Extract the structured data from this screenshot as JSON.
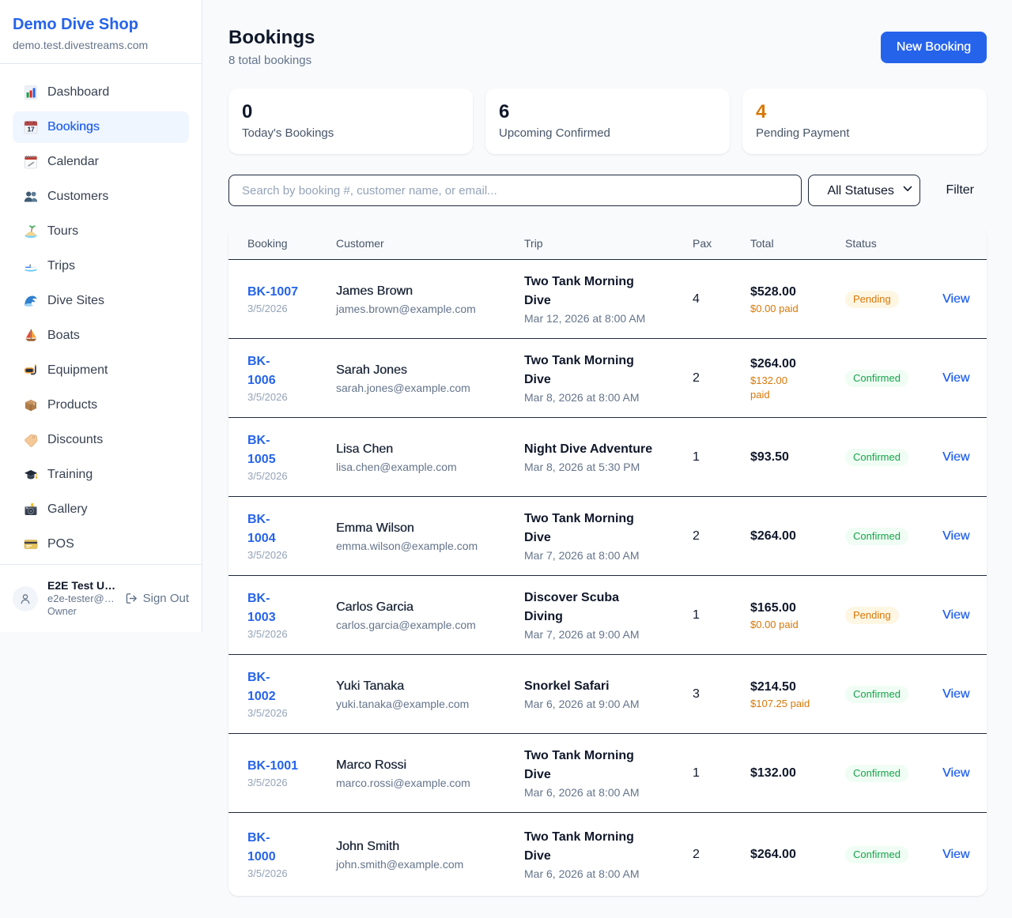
{
  "sidebar": {
    "brand": "Demo Dive Shop",
    "domain": "demo.test.divestreams.com",
    "items": [
      {
        "icon": "bar-chart-icon",
        "label": "Dashboard",
        "active": false
      },
      {
        "icon": "calendar-date-icon",
        "label": "Bookings",
        "active": true
      },
      {
        "icon": "spiral-calendar-icon",
        "label": "Calendar",
        "active": false
      },
      {
        "icon": "people-icon",
        "label": "Customers",
        "active": false
      },
      {
        "icon": "island-icon",
        "label": "Tours",
        "active": false
      },
      {
        "icon": "speedboat-icon",
        "label": "Trips",
        "active": false
      },
      {
        "icon": "wave-icon",
        "label": "Dive Sites",
        "active": false
      },
      {
        "icon": "sailboat-icon",
        "label": "Boats",
        "active": false
      },
      {
        "icon": "dive-mask-icon",
        "label": "Equipment",
        "active": false
      },
      {
        "icon": "package-icon",
        "label": "Products",
        "active": false
      },
      {
        "icon": "tag-icon",
        "label": "Discounts",
        "active": false
      },
      {
        "icon": "grad-cap-icon",
        "label": "Training",
        "active": false
      },
      {
        "icon": "camera-icon",
        "label": "Gallery",
        "active": false
      },
      {
        "icon": "credit-card-icon",
        "label": "POS",
        "active": false
      }
    ],
    "user": {
      "name": "E2E Test U…",
      "email": "e2e-tester@…",
      "role": "Owner",
      "signout_label": "Sign Out"
    }
  },
  "header": {
    "title": "Bookings",
    "subtitle": "8 total bookings",
    "new_booking_label": "New Booking"
  },
  "stats": [
    {
      "value": "0",
      "label": "Today's Bookings",
      "accent": false
    },
    {
      "value": "6",
      "label": "Upcoming Confirmed",
      "accent": false
    },
    {
      "value": "4",
      "label": "Pending Payment",
      "accent": true
    }
  ],
  "controls": {
    "search_placeholder": "Search by booking #, customer name, or email...",
    "status_selected": "All Statuses",
    "filter_label": "Filter"
  },
  "table": {
    "columns": [
      "Booking",
      "Customer",
      "Trip",
      "Pax",
      "Total",
      "Status"
    ],
    "rows": [
      {
        "id_lines": [
          "BK-1007"
        ],
        "date": "3/5/2026",
        "customer": "James Brown",
        "email": "james.brown@example.com",
        "trip": "Two Tank Morning Dive",
        "trip_date": "Mar 12, 2026 at 8:00 AM",
        "pax": "4",
        "total": "$528.00",
        "paid_lines": [
          "$0.00 paid"
        ],
        "status": "Pending",
        "action": "View"
      },
      {
        "id_lines": [
          "BK-",
          "1006"
        ],
        "date": "3/5/2026",
        "customer": "Sarah Jones",
        "email": "sarah.jones@example.com",
        "trip": "Two Tank Morning Dive",
        "trip_date": "Mar 8, 2026 at 8:00 AM",
        "pax": "2",
        "total": "$264.00",
        "paid_lines": [
          "$132.00",
          "paid"
        ],
        "status": "Confirmed",
        "action": "View"
      },
      {
        "id_lines": [
          "BK-",
          "1005"
        ],
        "date": "3/5/2026",
        "customer": "Lisa Chen",
        "email": "lisa.chen@example.com",
        "trip": "Night Dive Adventure",
        "trip_date": "Mar 8, 2026 at 5:30 PM",
        "pax": "1",
        "total": "$93.50",
        "paid_lines": [],
        "status": "Confirmed",
        "action": "View"
      },
      {
        "id_lines": [
          "BK-",
          "1004"
        ],
        "date": "3/5/2026",
        "customer": "Emma Wilson",
        "email": "emma.wilson@example.com",
        "trip": "Two Tank Morning Dive",
        "trip_date": "Mar 7, 2026 at 8:00 AM",
        "pax": "2",
        "total": "$264.00",
        "paid_lines": [],
        "status": "Confirmed",
        "action": "View"
      },
      {
        "id_lines": [
          "BK-",
          "1003"
        ],
        "date": "3/5/2026",
        "customer": "Carlos Garcia",
        "email": "carlos.garcia@example.com",
        "trip": "Discover Scuba Diving",
        "trip_date": "Mar 7, 2026 at 9:00 AM",
        "pax": "1",
        "total": "$165.00",
        "paid_lines": [
          "$0.00 paid"
        ],
        "status": "Pending",
        "action": "View"
      },
      {
        "id_lines": [
          "BK-",
          "1002"
        ],
        "date": "3/5/2026",
        "customer": "Yuki Tanaka",
        "email": "yuki.tanaka@example.com",
        "trip": "Snorkel Safari",
        "trip_date": "Mar 6, 2026 at 9:00 AM",
        "pax": "3",
        "total": "$214.50",
        "paid_lines": [
          "$107.25 paid"
        ],
        "status": "Confirmed",
        "action": "View"
      },
      {
        "id_lines": [
          "BK-1001"
        ],
        "date": "3/5/2026",
        "customer": "Marco Rossi",
        "email": "marco.rossi@example.com",
        "trip": "Two Tank Morning Dive",
        "trip_date": "Mar 6, 2026 at 8:00 AM",
        "pax": "1",
        "total": "$132.00",
        "paid_lines": [],
        "status": "Confirmed",
        "action": "View"
      },
      {
        "id_lines": [
          "BK-",
          "1000"
        ],
        "date": "3/5/2026",
        "customer": "John Smith",
        "email": "john.smith@example.com",
        "trip": "Two Tank Morning Dive",
        "trip_date": "Mar 6, 2026 at 8:00 AM",
        "pax": "2",
        "total": "$264.00",
        "paid_lines": [],
        "status": "Confirmed",
        "action": "View"
      }
    ]
  },
  "colors": {
    "accent_blue": "#2563eb",
    "accent_orange": "#d97706",
    "accent_green": "#16a34a",
    "page_bg": "#f8fafc",
    "pending_bg": "#fdf6e3",
    "confirmed_bg": "#f0fdf4"
  }
}
